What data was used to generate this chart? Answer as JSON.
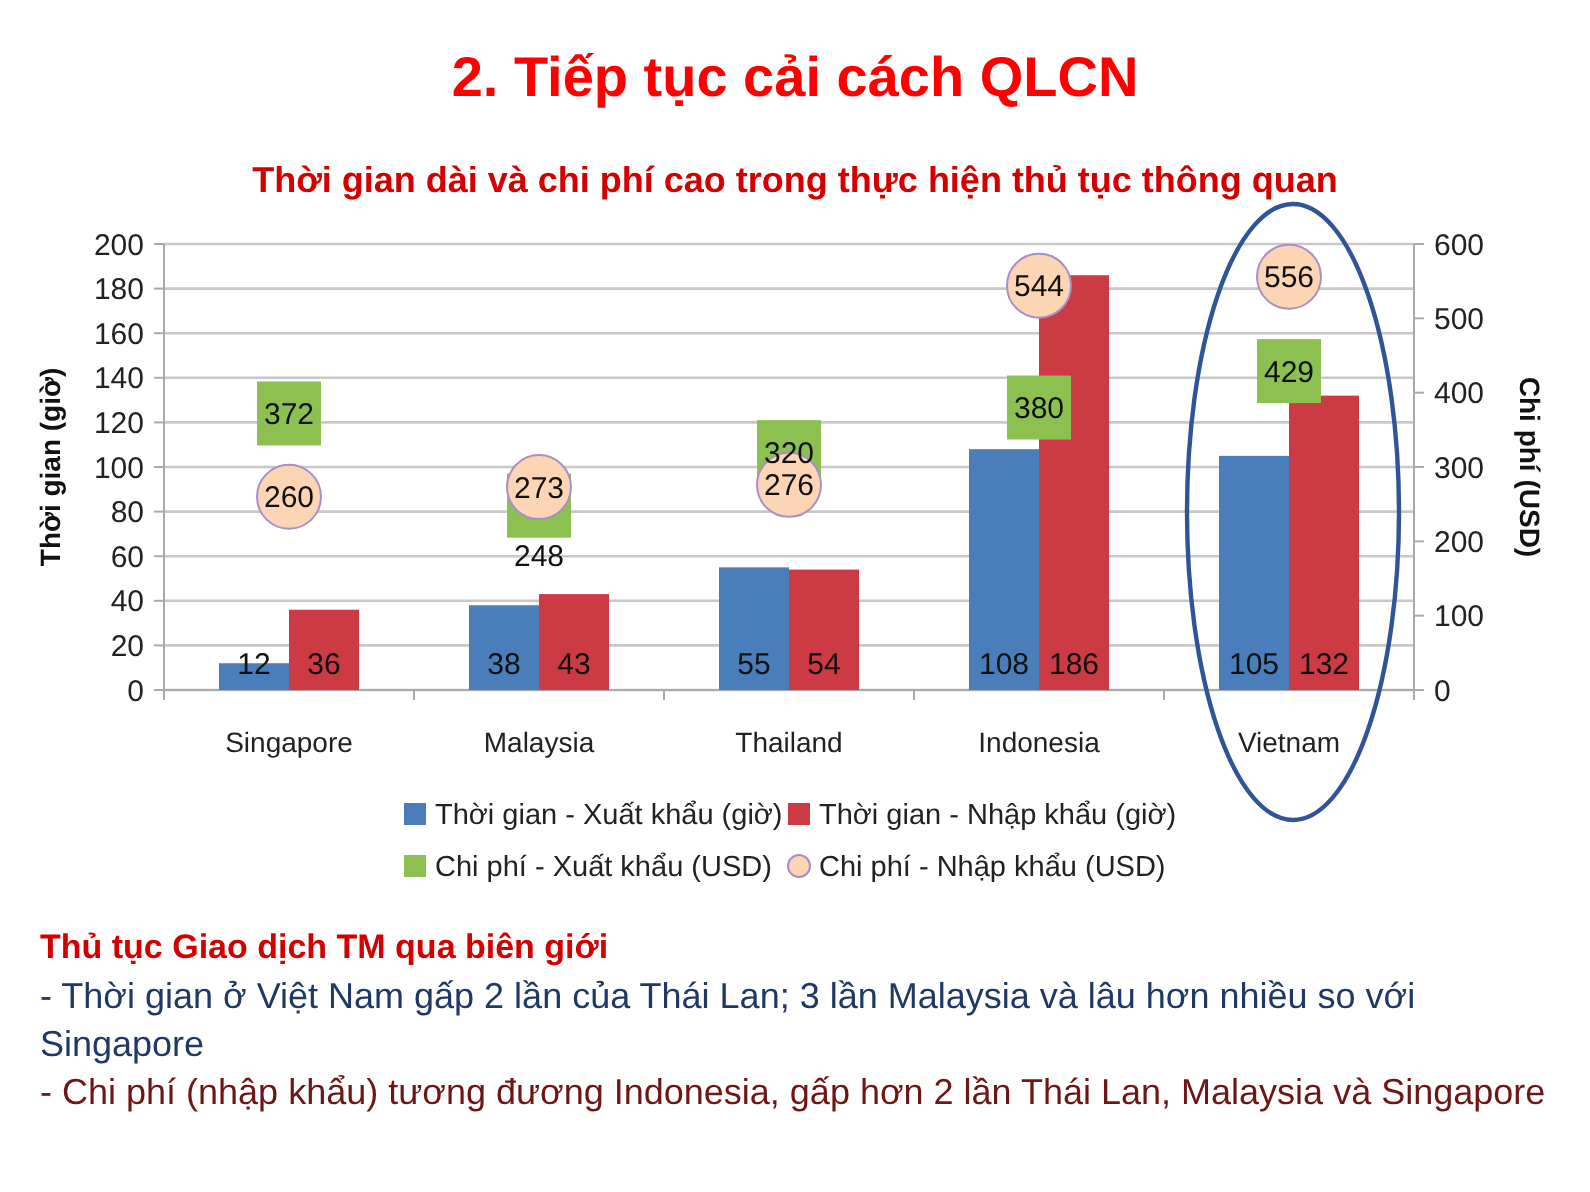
{
  "chart_data": {
    "type": "bar",
    "title": "2. Tiếp tục cải cách QLCN",
    "subtitle": "Thời gian dài và chi phí cao trong thực hiện thủ tục thông quan",
    "ylabel": "Thời gian (giờ)",
    "y2label": "Chi phí (USD)",
    "categories": [
      "Singapore",
      "Malaysia",
      "Thailand",
      "Indonesia",
      "Vietnam"
    ],
    "series": [
      {
        "name": "Thời gian - Xuất khẩu (giờ)",
        "color": "#4a7ebb",
        "values": [
          12,
          38,
          55,
          108,
          105
        ]
      },
      {
        "name": "Thời gian - Nhập khẩu (giờ)",
        "color": "#cc3b44",
        "values": [
          36,
          43,
          54,
          186,
          132
        ]
      },
      {
        "name": "Chi phí - Xuất khẩu (USD)",
        "type": "scatter",
        "axis": "y2",
        "marker": "square",
        "color": "#8cc152",
        "values": [
          372,
          248,
          320,
          380,
          429
        ]
      },
      {
        "name": "Chi phí - Nhập khẩu (USD)",
        "type": "scatter",
        "axis": "y2",
        "marker": "circle",
        "color": "#fcd5b5",
        "values": [
          260,
          273,
          276,
          544,
          556
        ]
      }
    ],
    "ylim": [
      0,
      200
    ],
    "yticks": [
      0,
      20,
      40,
      60,
      80,
      100,
      120,
      140,
      160,
      180,
      200
    ],
    "y2lim": [
      0,
      600
    ],
    "y2ticks": [
      0,
      100,
      200,
      300,
      400,
      500,
      600
    ],
    "grid": "y",
    "legend": "bottom",
    "data_labels": true,
    "annotations": [
      "Thủ tục Giao dịch TM qua biên giới",
      "- Thời gian ở Việt Nam gấp 2 lần của Thái Lan; 3 lần Malaysia và lâu hơn nhiều so với Singapore",
      "- Chi phí (nhập khẩu) tương đương Indonesia, gấp hơn 2 lần Thái Lan, Malaysia và Singapore"
    ]
  }
}
